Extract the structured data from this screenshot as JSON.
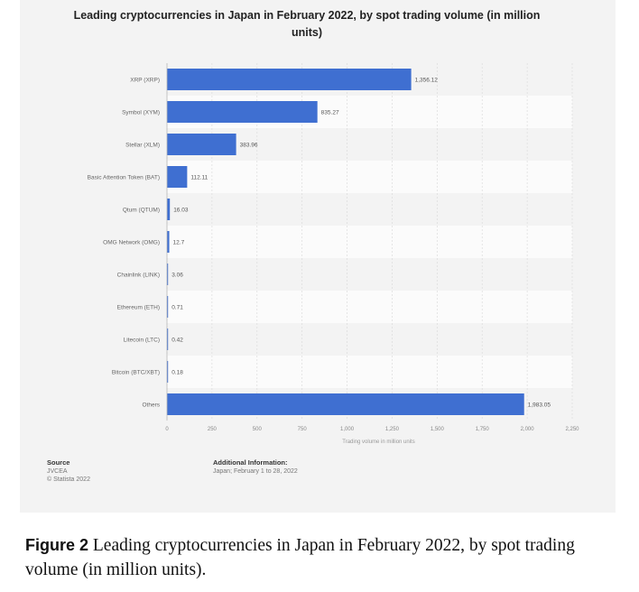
{
  "chart_data": {
    "type": "bar",
    "orientation": "horizontal",
    "title": "Leading cryptocurrencies in Japan in February 2022, by spot trading volume (in million units)",
    "xlabel": "Trading volume in million units",
    "ylabel": "",
    "categories": [
      "XRP (XRP)",
      "Symbol (XYM)",
      "Stellar (XLM)",
      "Basic Attention Token (BAT)",
      "Qtum (QTUM)",
      "OMG Network (OMG)",
      "Chainlink (LINK)",
      "Ethereum (ETH)",
      "Litecoin (LTC)",
      "Bitcoin (BTC/XBT)",
      "Others"
    ],
    "values": [
      1356.12,
      835.27,
      383.96,
      112.11,
      16.03,
      12.7,
      3.06,
      0.71,
      0.42,
      0.18,
      1983.05
    ],
    "value_labels": [
      "1,356.12",
      "835.27",
      "383.96",
      "112.11",
      "16.03",
      "12.7",
      "3.06",
      "0.71",
      "0.42",
      "0.18",
      "1,983.05"
    ],
    "xlim": [
      0,
      2250
    ],
    "xticks": [
      0,
      250,
      500,
      750,
      1000,
      1250,
      1500,
      1750,
      2000,
      2250
    ],
    "xtick_labels": [
      "0",
      "250",
      "500",
      "750",
      "1,000",
      "1,250",
      "1,500",
      "1,750",
      "2,000",
      "2,250"
    ],
    "grid": true,
    "legend": "none",
    "bar_color": "#3f6fd1"
  },
  "footer": {
    "source_heading": "Source",
    "source_lines": [
      "JVCEA",
      "© Statista 2022"
    ],
    "info_heading": "Additional Information:",
    "info_text": "Japan; February 1 to 28, 2022"
  },
  "caption": {
    "label": "Figure 2",
    "text": " Leading cryptocurrencies in Japan in February 2022, by spot trading volume (in million units)."
  }
}
